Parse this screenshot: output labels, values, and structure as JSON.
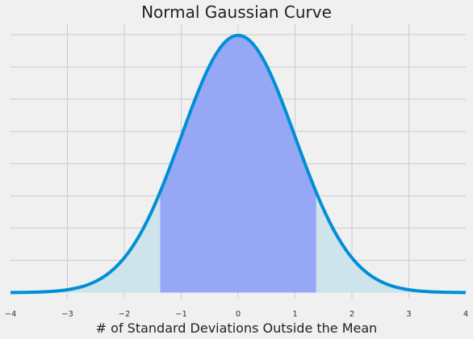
{
  "chart_data": {
    "type": "area",
    "title": "Normal Gaussian Curve",
    "xlabel": "# of Standard Deviations Outside the Mean",
    "ylabel": "",
    "xlim": [
      -4,
      4
    ],
    "ylim": [
      0,
      0.4
    ],
    "x_ticks": [
      -4,
      -3,
      -2,
      -1,
      0,
      1,
      2,
      3,
      4
    ],
    "y_gridlines": [
      0.05,
      0.1,
      0.15,
      0.2,
      0.25,
      0.3,
      0.35,
      0.4
    ],
    "y_tick_labels_shown": false,
    "grid": true,
    "legend": "none",
    "curve": {
      "function": "standard normal pdf",
      "mean": 0,
      "sd": 1,
      "x": [
        -4.0,
        -3.5,
        -3.0,
        -2.5,
        -2.0,
        -1.5,
        -1.0,
        -0.5,
        0.0,
        0.5,
        1.0,
        1.5,
        2.0,
        2.5,
        3.0,
        3.5,
        4.0
      ],
      "y": [
        0.0001,
        0.0009,
        0.0044,
        0.0175,
        0.054,
        0.1295,
        0.242,
        0.3521,
        0.3989,
        0.3521,
        0.242,
        0.1295,
        0.054,
        0.0175,
        0.0044,
        0.0009,
        0.0001
      ]
    },
    "shaded_regions": [
      {
        "x_range": [
          -4,
          4
        ],
        "color": "#cfe3ec"
      },
      {
        "x_range": [
          -1.37,
          1.37
        ],
        "color": "#95a7f5"
      }
    ]
  },
  "colors": {
    "background": "#f0f0f0",
    "grid": "#cbcbcb",
    "curve": "#008fd5",
    "text": "#222222",
    "tick_text": "#333333"
  }
}
